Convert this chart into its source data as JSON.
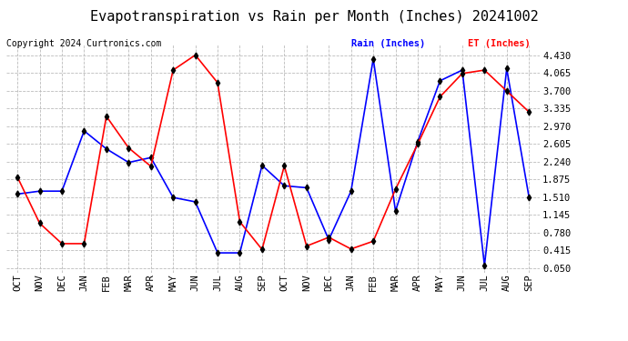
{
  "title": "Evapotranspiration vs Rain per Month (Inches) 20241002",
  "copyright": "Copyright 2024 Curtronics.com",
  "x_labels": [
    "OCT",
    "NOV",
    "DEC",
    "JAN",
    "FEB",
    "MAR",
    "APR",
    "MAY",
    "JUN",
    "JUL",
    "AUG",
    "SEP",
    "OCT",
    "NOV",
    "DEC",
    "JAN",
    "FEB",
    "MAR",
    "APR",
    "MAY",
    "JUN",
    "JUL",
    "AUG",
    "SEP"
  ],
  "rain_values": [
    1.57,
    1.63,
    1.63,
    2.87,
    2.5,
    2.22,
    2.32,
    1.5,
    1.41,
    0.36,
    0.36,
    2.16,
    1.74,
    1.7,
    0.63,
    1.63,
    4.35,
    1.22,
    2.65,
    3.9,
    4.12,
    0.1,
    4.15,
    1.51
  ],
  "et_values": [
    1.92,
    0.97,
    0.55,
    0.55,
    3.17,
    2.52,
    2.14,
    4.12,
    4.43,
    3.86,
    1.0,
    0.43,
    2.15,
    0.5,
    0.68,
    0.44,
    0.6,
    1.67,
    2.6,
    3.57,
    4.05,
    4.12,
    3.69,
    3.26
  ],
  "rain_color": "blue",
  "et_color": "red",
  "marker": "d",
  "marker_color": "black",
  "marker_size": 3.5,
  "line_width": 1.2,
  "y_ticks": [
    0.05,
    0.415,
    0.78,
    1.145,
    1.51,
    1.875,
    2.24,
    2.605,
    2.97,
    3.335,
    3.7,
    4.065,
    4.43
  ],
  "ylim": [
    -0.05,
    4.65
  ],
  "grid_color": "#bbbbbb",
  "grid_linestyle": "--",
  "background_color": "#ffffff",
  "legend_rain": "Rain (Inches)",
  "legend_et": "ET (Inches)",
  "title_fontsize": 11,
  "tick_fontsize": 7.5,
  "copyright_fontsize": 7
}
